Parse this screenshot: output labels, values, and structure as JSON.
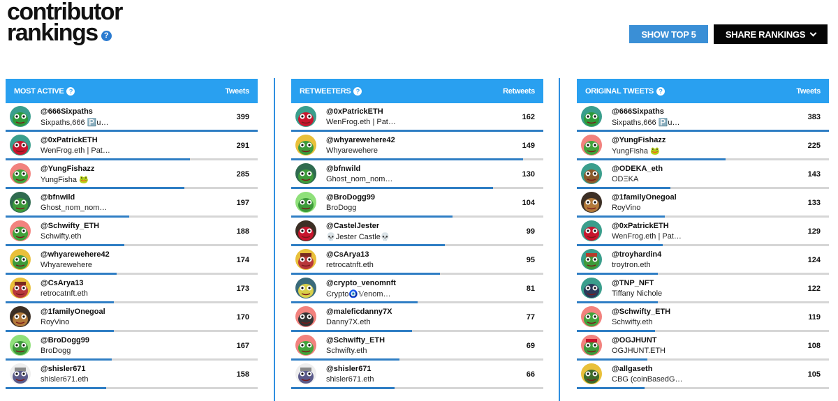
{
  "page": {
    "title_line1": "contributor",
    "title_line2": "rankings",
    "help_glyph": "?",
    "show_top_label": "SHOW TOP 5",
    "share_label": "SHARE RANKINGS"
  },
  "colors": {
    "header_blue": "#29a0f0",
    "bar_blue": "#2f7ec4",
    "button_blue": "#3a8fd6",
    "button_black": "#050505"
  },
  "panels": [
    {
      "title": "MOST ACTIVE",
      "metric": "Tweets",
      "rows": [
        {
          "handle": "@666Sixpaths",
          "name": "Sixpaths,666 🅿️u…",
          "count": 399,
          "fraction": 1.0,
          "bg": "#3a9e8c",
          "fg": "#2d9a3a",
          "hat": ""
        },
        {
          "handle": "@0xPatrickETH",
          "name": "WenFrog.eth | Pat…",
          "count": 291,
          "fraction": 0.73,
          "bg": "#3a9e8c",
          "fg": "#c8152d",
          "hat": ""
        },
        {
          "handle": "@YungFishazz",
          "name": "YungFisha 🐸",
          "count": 285,
          "fraction": 0.71,
          "bg": "#f2827e",
          "fg": "#41a33b",
          "hat": ""
        },
        {
          "handle": "@bfnwild",
          "name": "Ghost_nom_nom…",
          "count": 197,
          "fraction": 0.49,
          "bg": "#2f6b4f",
          "fg": "#3d9a3a",
          "hat": ""
        },
        {
          "handle": "@Schwifty_ETH",
          "name": "Schwifty.eth",
          "count": 188,
          "fraction": 0.47,
          "bg": "#f2827e",
          "fg": "#41a33b",
          "hat": ""
        },
        {
          "handle": "@whyarewehere42",
          "name": "Whyarewehere",
          "count": 174,
          "fraction": 0.44,
          "bg": "#e9c03a",
          "fg": "#3d9a3a",
          "hat": ""
        },
        {
          "handle": "@CsArya13",
          "name": "retrocatnft.eth",
          "count": 173,
          "fraction": 0.43,
          "bg": "#e9c03a",
          "fg": "#b8383a",
          "hat": "#7a2a1f"
        },
        {
          "handle": "@1familyOnegoal",
          "name": "RoyVino",
          "count": 170,
          "fraction": 0.43,
          "bg": "#3c2f25",
          "fg": "#b37a3a",
          "hat": ""
        },
        {
          "handle": "@BroDogg99",
          "name": "BroDogg",
          "count": 167,
          "fraction": 0.42,
          "bg": "#8fe07a",
          "fg": "#3d9a3a",
          "hat": ""
        },
        {
          "handle": "@shisler671",
          "name": "shisler671.eth",
          "count": 158,
          "fraction": 0.4,
          "bg": "#eeeeee",
          "fg": "#5a5a8a",
          "hat": "#888888"
        }
      ]
    },
    {
      "title": "RETWEETERS",
      "metric": "Retweets",
      "rows": [
        {
          "handle": "@0xPatrickETH",
          "name": "WenFrog.eth | Pat…",
          "count": 162,
          "fraction": 1.0,
          "bg": "#3a9e8c",
          "fg": "#c8152d",
          "hat": ""
        },
        {
          "handle": "@whyarewehere42",
          "name": "Whyarewehere",
          "count": 149,
          "fraction": 0.92,
          "bg": "#e9c03a",
          "fg": "#3d9a3a",
          "hat": ""
        },
        {
          "handle": "@bfnwild",
          "name": "Ghost_nom_nom…",
          "count": 130,
          "fraction": 0.8,
          "bg": "#2f6b4f",
          "fg": "#3d9a3a",
          "hat": ""
        },
        {
          "handle": "@BroDogg99",
          "name": "BroDogg",
          "count": 104,
          "fraction": 0.64,
          "bg": "#8fe07a",
          "fg": "#3d9a3a",
          "hat": ""
        },
        {
          "handle": "@CastelJester",
          "name": "💀Jester Castle💀",
          "count": 99,
          "fraction": 0.61,
          "bg": "#3c2f25",
          "fg": "#c8152d",
          "hat": ""
        },
        {
          "handle": "@CsArya13",
          "name": "retrocatnft.eth",
          "count": 95,
          "fraction": 0.59,
          "bg": "#e9c03a",
          "fg": "#b8383a",
          "hat": "#7a2a1f"
        },
        {
          "handle": "@crypto_venomnft",
          "name": "Ͼrypto🧿𝕍enom…",
          "count": 81,
          "fraction": 0.5,
          "bg": "#3a6a7a",
          "fg": "#d9d04a",
          "hat": ""
        },
        {
          "handle": "@maleficdanny7X",
          "name": "Danny7X.eth",
          "count": 77,
          "fraction": 0.48,
          "bg": "#f2827e",
          "fg": "#333333",
          "hat": ""
        },
        {
          "handle": "@Schwifty_ETH",
          "name": "Schwifty.eth",
          "count": 69,
          "fraction": 0.43,
          "bg": "#f2827e",
          "fg": "#41a33b",
          "hat": ""
        },
        {
          "handle": "@shisler671",
          "name": "shisler671.eth",
          "count": 66,
          "fraction": 0.41,
          "bg": "#eeeeee",
          "fg": "#5a5a8a",
          "hat": "#888888"
        }
      ]
    },
    {
      "title": "ORIGINAL TWEETS",
      "metric": "Tweets",
      "rows": [
        {
          "handle": "@666Sixpaths",
          "name": "Sixpaths,666 🅿️u…",
          "count": 383,
          "fraction": 1.0,
          "bg": "#3a9e8c",
          "fg": "#2d9a3a",
          "hat": ""
        },
        {
          "handle": "@YungFishazz",
          "name": "YungFisha 🐸",
          "count": 225,
          "fraction": 0.59,
          "bg": "#f2827e",
          "fg": "#41a33b",
          "hat": ""
        },
        {
          "handle": "@ODEKA_eth",
          "name": "ODΞKA",
          "count": 143,
          "fraction": 0.37,
          "bg": "#3a9e8c",
          "fg": "#8a5a2a",
          "hat": ""
        },
        {
          "handle": "@1familyOnegoal",
          "name": "RoyVino",
          "count": 133,
          "fraction": 0.35,
          "bg": "#3c2f25",
          "fg": "#b37a3a",
          "hat": ""
        },
        {
          "handle": "@0xPatrickETH",
          "name": "WenFrog.eth | Pat…",
          "count": 129,
          "fraction": 0.34,
          "bg": "#3a9e8c",
          "fg": "#c8152d",
          "hat": ""
        },
        {
          "handle": "@troyhardin4",
          "name": "troytron.eth",
          "count": 124,
          "fraction": 0.32,
          "bg": "#3a9e8c",
          "fg": "#3d9a3a",
          "hat": "#b83a2a"
        },
        {
          "handle": "@TNP_NFT",
          "name": "Tiffany Nichole",
          "count": 122,
          "fraction": 0.32,
          "bg": "#3a9e8c",
          "fg": "#2a3a5a",
          "hat": ""
        },
        {
          "handle": "@Schwifty_ETH",
          "name": "Schwifty.eth",
          "count": 119,
          "fraction": 0.31,
          "bg": "#f2827e",
          "fg": "#41a33b",
          "hat": ""
        },
        {
          "handle": "@OGJHUNT",
          "name": "OGJHUNT.ETH",
          "count": 108,
          "fraction": 0.28,
          "bg": "#f2827e",
          "fg": "#3d9a3a",
          "hat": "#c8152d"
        },
        {
          "handle": "@allgaseth",
          "name": "CBG (coinBasedG…",
          "count": 105,
          "fraction": 0.27,
          "bg": "#e9c03a",
          "fg": "#3d6a2a",
          "hat": ""
        }
      ]
    }
  ]
}
